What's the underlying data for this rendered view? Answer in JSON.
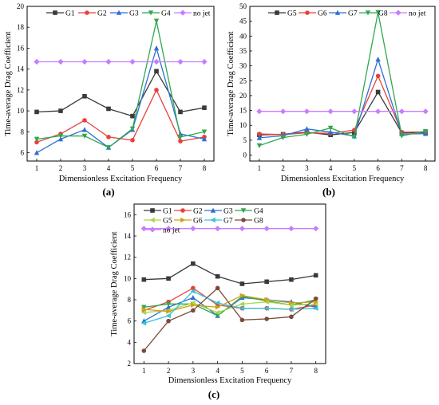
{
  "chart_data": [
    {
      "type": "line",
      "panel_label": "(a)",
      "xlabel": "Dimensionless Excitation Frequency",
      "ylabel": "Time-average Drag Coefficient",
      "x": [
        1,
        2,
        3,
        4,
        5,
        6,
        7,
        8
      ],
      "xlim": [
        0.6,
        8.4
      ],
      "ylim": [
        5.2,
        20
      ],
      "yticks": [
        6,
        8,
        10,
        12,
        14,
        16,
        18,
        20
      ],
      "grid": false,
      "legend": "top",
      "series": [
        {
          "name": "G1",
          "color": "#3a3a3a",
          "marker": "square",
          "values": [
            9.9,
            10.0,
            11.4,
            10.2,
            9.5,
            13.8,
            9.9,
            10.3
          ]
        },
        {
          "name": "G2",
          "color": "#e8413c",
          "marker": "circle",
          "values": [
            7.0,
            7.8,
            9.1,
            7.5,
            7.2,
            12.0,
            7.1,
            7.5
          ]
        },
        {
          "name": "G3",
          "color": "#2f6fd6",
          "marker": "triangle",
          "values": [
            6.0,
            7.3,
            8.2,
            6.5,
            8.2,
            16.0,
            7.8,
            7.3
          ]
        },
        {
          "name": "G4",
          "color": "#2fa84f",
          "marker": "triangle-down",
          "values": [
            7.3,
            7.6,
            7.6,
            6.5,
            8.3,
            18.6,
            7.5,
            8.0
          ]
        },
        {
          "name": "no jet",
          "color": "#c77dff",
          "marker": "diamond",
          "values": [
            14.7,
            14.7,
            14.7,
            14.7,
            14.7,
            14.7,
            14.7,
            14.7
          ]
        }
      ]
    },
    {
      "type": "line",
      "panel_label": "(b)",
      "xlabel": "Dimensionless Excitation Frequency",
      "ylabel": "Time-average Drag Coefficient",
      "x": [
        1,
        2,
        3,
        4,
        5,
        6,
        7,
        8
      ],
      "xlim": [
        0.6,
        8.4
      ],
      "ylim": [
        -2,
        50
      ],
      "yticks": [
        0,
        5,
        10,
        15,
        20,
        25,
        30,
        35,
        40,
        45,
        50
      ],
      "grid": false,
      "legend": "top",
      "series": [
        {
          "name": "G5",
          "color": "#3a3a3a",
          "marker": "square",
          "values": [
            6.8,
            7.0,
            7.7,
            6.8,
            7.6,
            21.2,
            7.5,
            7.6
          ]
        },
        {
          "name": "G6",
          "color": "#e8413c",
          "marker": "circle",
          "values": [
            7.1,
            6.9,
            7.5,
            7.3,
            8.4,
            26.6,
            7.7,
            7.8
          ]
        },
        {
          "name": "G7",
          "color": "#2f6fd6",
          "marker": "triangle",
          "values": [
            5.8,
            6.5,
            8.8,
            7.7,
            6.4,
            32.2,
            7.1,
            7.2
          ]
        },
        {
          "name": "G8",
          "color": "#2fa84f",
          "marker": "triangle-down",
          "values": [
            3.2,
            5.9,
            7.0,
            9.1,
            6.1,
            48.0,
            6.5,
            8.0
          ]
        },
        {
          "name": "no jet",
          "color": "#c77dff",
          "marker": "diamond",
          "values": [
            14.7,
            14.7,
            14.7,
            14.7,
            14.7,
            14.7,
            14.7,
            14.7
          ]
        }
      ]
    },
    {
      "type": "line",
      "panel_label": "(c)",
      "xlabel": "Dimensionless Excitation Frequency",
      "ylabel": "Time-average Drag Coefficient",
      "x": [
        1,
        2,
        3,
        4,
        5,
        6,
        7,
        8
      ],
      "xlim": [
        0.6,
        8.4
      ],
      "ylim": [
        2,
        17
      ],
      "yticks": [
        2,
        4,
        6,
        8,
        10,
        12,
        14,
        16
      ],
      "grid": false,
      "legend": "top",
      "series": [
        {
          "name": "G1",
          "color": "#3a3a3a",
          "marker": "square",
          "values": [
            9.9,
            10.0,
            11.4,
            10.2,
            9.5,
            9.7,
            9.9,
            10.3
          ]
        },
        {
          "name": "G2",
          "color": "#e8413c",
          "marker": "circle",
          "values": [
            7.0,
            7.8,
            9.1,
            7.5,
            7.2,
            7.2,
            7.1,
            7.5
          ]
        },
        {
          "name": "G3",
          "color": "#2f6fd6",
          "marker": "triangle",
          "values": [
            6.0,
            7.3,
            8.2,
            6.5,
            8.2,
            8.0,
            7.8,
            7.3
          ]
        },
        {
          "name": "G4",
          "color": "#2fa84f",
          "marker": "triangle-down",
          "values": [
            7.3,
            7.6,
            7.6,
            6.5,
            8.3,
            7.9,
            7.5,
            8.0
          ]
        },
        {
          "name": "G5",
          "color": "#a8d84a",
          "marker": "triangle-left",
          "values": [
            6.8,
            7.0,
            7.7,
            6.8,
            7.6,
            7.8,
            7.5,
            7.6
          ]
        },
        {
          "name": "G6",
          "color": "#d4a017",
          "marker": "triangle-right",
          "values": [
            7.1,
            6.9,
            7.5,
            7.3,
            8.4,
            8.0,
            7.7,
            7.8
          ]
        },
        {
          "name": "G7",
          "color": "#35c4d6",
          "marker": "triangle-left",
          "values": [
            5.8,
            6.5,
            8.8,
            7.7,
            7.2,
            7.2,
            7.1,
            7.2
          ]
        },
        {
          "name": "G8",
          "color": "#7a4a3a",
          "marker": "circle",
          "values": [
            3.2,
            6.0,
            7.0,
            9.1,
            6.1,
            6.2,
            6.4,
            8.1
          ]
        },
        {
          "name": "no jet",
          "color": "#c77dff",
          "marker": "diamond",
          "values": [
            14.7,
            14.7,
            14.7,
            14.7,
            14.7,
            14.7,
            14.7,
            14.7
          ]
        }
      ]
    }
  ]
}
